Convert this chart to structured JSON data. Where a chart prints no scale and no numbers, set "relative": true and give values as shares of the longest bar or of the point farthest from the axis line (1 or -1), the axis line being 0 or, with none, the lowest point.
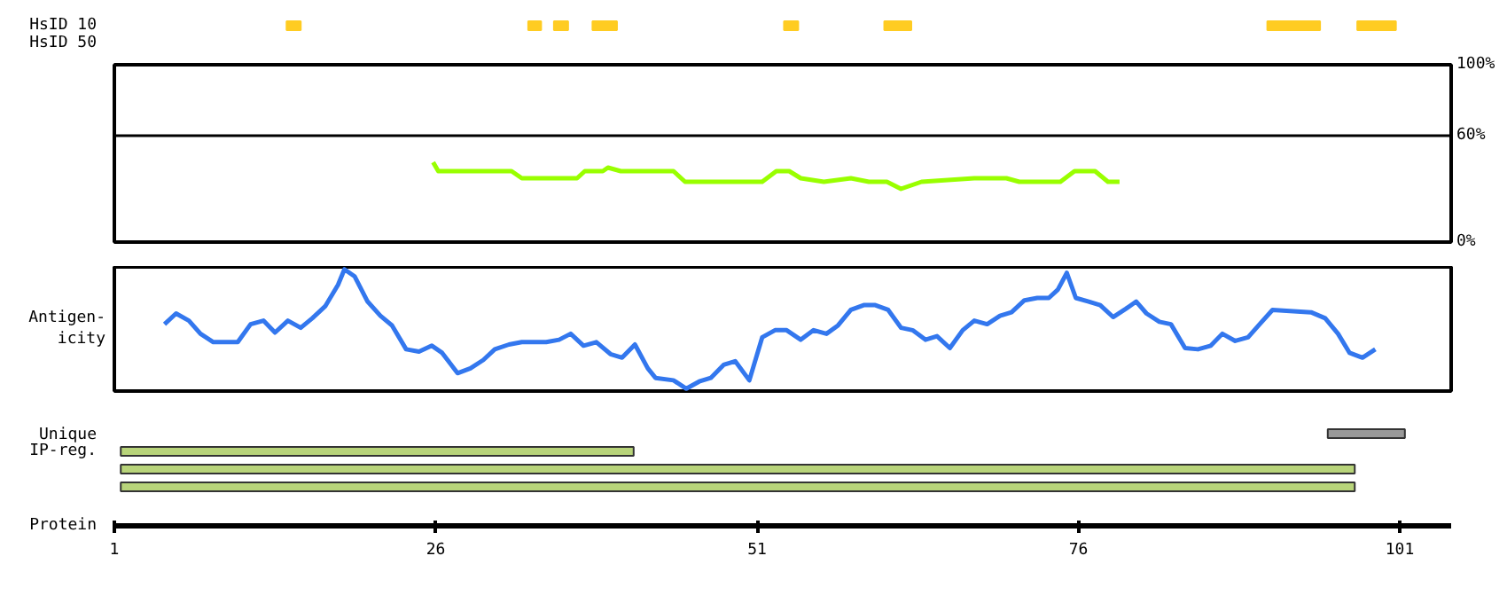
{
  "chart_data": [
    {
      "type": "bar",
      "orientation": "horizontal",
      "categories": [
        "HsID 10",
        "HsID 50"
      ],
      "xlim": [
        1,
        105
      ],
      "tick_labels": "y",
      "series": [
        {
          "color": "#ffcc22",
          "values": [
            1.1,
            null
          ],
          "base": [
            14.4,
            null
          ]
        },
        {
          "color": "#ffcc22",
          "values": [
            1.0,
            null
          ],
          "base": [
            33.2,
            null
          ]
        },
        {
          "color": "#ffcc22",
          "values": [
            1.1,
            null
          ],
          "base": [
            35.2,
            null
          ]
        },
        {
          "color": "#ffcc22",
          "values": [
            1.9,
            null
          ],
          "base": [
            38.2,
            null
          ]
        },
        {
          "color": "#ffcc22",
          "values": [
            1.1,
            null
          ],
          "base": [
            53.1,
            null
          ]
        },
        {
          "color": "#ffcc22",
          "values": [
            2.1,
            null
          ],
          "base": [
            60.9,
            null
          ]
        },
        {
          "color": "#ffcc22",
          "values": [
            4.1,
            null
          ],
          "base": [
            90.7,
            null
          ]
        },
        {
          "color": "#ffcc22",
          "values": [
            3.0,
            null
          ],
          "base": [
            97.7,
            null
          ]
        }
      ]
    },
    {
      "type": "line",
      "xlim": [
        1,
        105
      ],
      "ylim": [
        0,
        100
      ],
      "yticks": [
        {
          "value": 0,
          "label": "0%"
        },
        {
          "value": 60,
          "label": "60%"
        },
        {
          "value": 100,
          "label": "100%"
        }
      ],
      "tick_labels": "y",
      "ref_lines": [
        {
          "axis": "y",
          "value": 60,
          "color": "#000000"
        }
      ],
      "series": [
        {
          "color": "#99ff00",
          "x": [
            25.8,
            26.2,
            31.9,
            32.7,
            37.0,
            37.6,
            39.0,
            39.4,
            40.4,
            44.5,
            45.4,
            51.4,
            52.5,
            53.5,
            54.4,
            56.2,
            58.3,
            59.7,
            61.1,
            62.2,
            63.8,
            67.9,
            70.4,
            71.4,
            74.6,
            75.7,
            77.3,
            78.3,
            79.2
          ],
          "values": [
            45,
            40,
            40,
            36,
            36,
            40,
            40,
            42,
            40,
            40,
            34,
            34,
            40,
            40,
            36,
            34,
            36,
            34,
            34,
            30,
            34,
            36,
            36,
            34,
            34,
            40,
            40,
            34,
            34
          ]
        }
      ]
    },
    {
      "type": "line",
      "relative": true,
      "ylabel": "Antigen-\nicity",
      "xlim": [
        1,
        105
      ],
      "tick_labels": false,
      "series": [
        {
          "color": "#3377ee",
          "x": [
            4.9,
            5.8,
            6.8,
            7.7,
            8.7,
            10.6,
            11.6,
            12.6,
            13.5,
            14.5,
            15.5,
            16.4,
            17.4,
            18.4,
            18.9,
            19.7,
            20.7,
            21.7,
            22.6,
            23.7,
            24.7,
            25.7,
            26.5,
            27.7,
            28.7,
            29.7,
            30.6,
            31.7,
            32.7,
            34.6,
            35.6,
            36.5,
            37.5,
            38.5,
            39.6,
            40.5,
            41.5,
            42.5,
            43.1,
            44.5,
            45.5,
            46.5,
            47.4,
            48.4,
            49.3,
            50.4,
            51.4,
            52.4,
            53.3,
            54.4,
            55.4,
            56.4,
            57.3,
            58.3,
            59.3,
            60.2,
            61.2,
            62.2,
            63.1,
            64.1,
            65.0,
            66.0,
            67.0,
            67.9,
            68.9,
            69.9,
            70.8,
            71.8,
            72.8,
            73.7,
            74.4,
            75.1,
            75.8,
            76.8,
            77.7,
            78.7,
            79.7,
            80.5,
            81.3,
            82.3,
            83.2,
            84.3,
            85.3,
            86.3,
            87.2,
            88.2,
            89.2,
            90.1,
            91.1,
            94.1,
            95.2,
            96.2,
            97.1,
            98.1,
            99.1
          ],
          "values": [
            0.54,
            0.63,
            0.57,
            0.46,
            0.39,
            0.39,
            0.54,
            0.57,
            0.47,
            0.57,
            0.51,
            0.59,
            0.69,
            0.87,
            1.0,
            0.94,
            0.73,
            0.61,
            0.53,
            0.33,
            0.31,
            0.36,
            0.3,
            0.13,
            0.17,
            0.24,
            0.33,
            0.37,
            0.39,
            0.39,
            0.41,
            0.46,
            0.36,
            0.39,
            0.29,
            0.26,
            0.37,
            0.17,
            0.09,
            0.07,
            0,
            0.06,
            0.09,
            0.2,
            0.23,
            0.07,
            0.43,
            0.49,
            0.49,
            0.41,
            0.49,
            0.46,
            0.53,
            0.66,
            0.7,
            0.7,
            0.66,
            0.51,
            0.49,
            0.41,
            0.44,
            0.34,
            0.49,
            0.57,
            0.54,
            0.61,
            0.64,
            0.74,
            0.76,
            0.76,
            0.83,
            0.97,
            0.76,
            0.73,
            0.7,
            0.6,
            0.67,
            0.73,
            0.63,
            0.56,
            0.54,
            0.34,
            0.33,
            0.36,
            0.46,
            0.4,
            0.43,
            0.54,
            0.66,
            0.64,
            0.59,
            0.46,
            0.3,
            0.26,
            0.33
          ]
        }
      ]
    },
    {
      "type": "bar",
      "orientation": "horizontal",
      "categories": [
        "Unique",
        "IP-reg.",
        null,
        null
      ],
      "xlim": [
        1,
        105
      ],
      "xticks": [
        1,
        26,
        51,
        76,
        101
      ],
      "xlabel": "Protein",
      "base": [
        95.4,
        1.5,
        1.5,
        1.5
      ],
      "values": [
        6.0,
        39.9,
        96.0,
        96.0
      ],
      "colors": [
        "#999999",
        "#b8d47a",
        "#b8d47a",
        "#b8d47a"
      ]
    }
  ]
}
